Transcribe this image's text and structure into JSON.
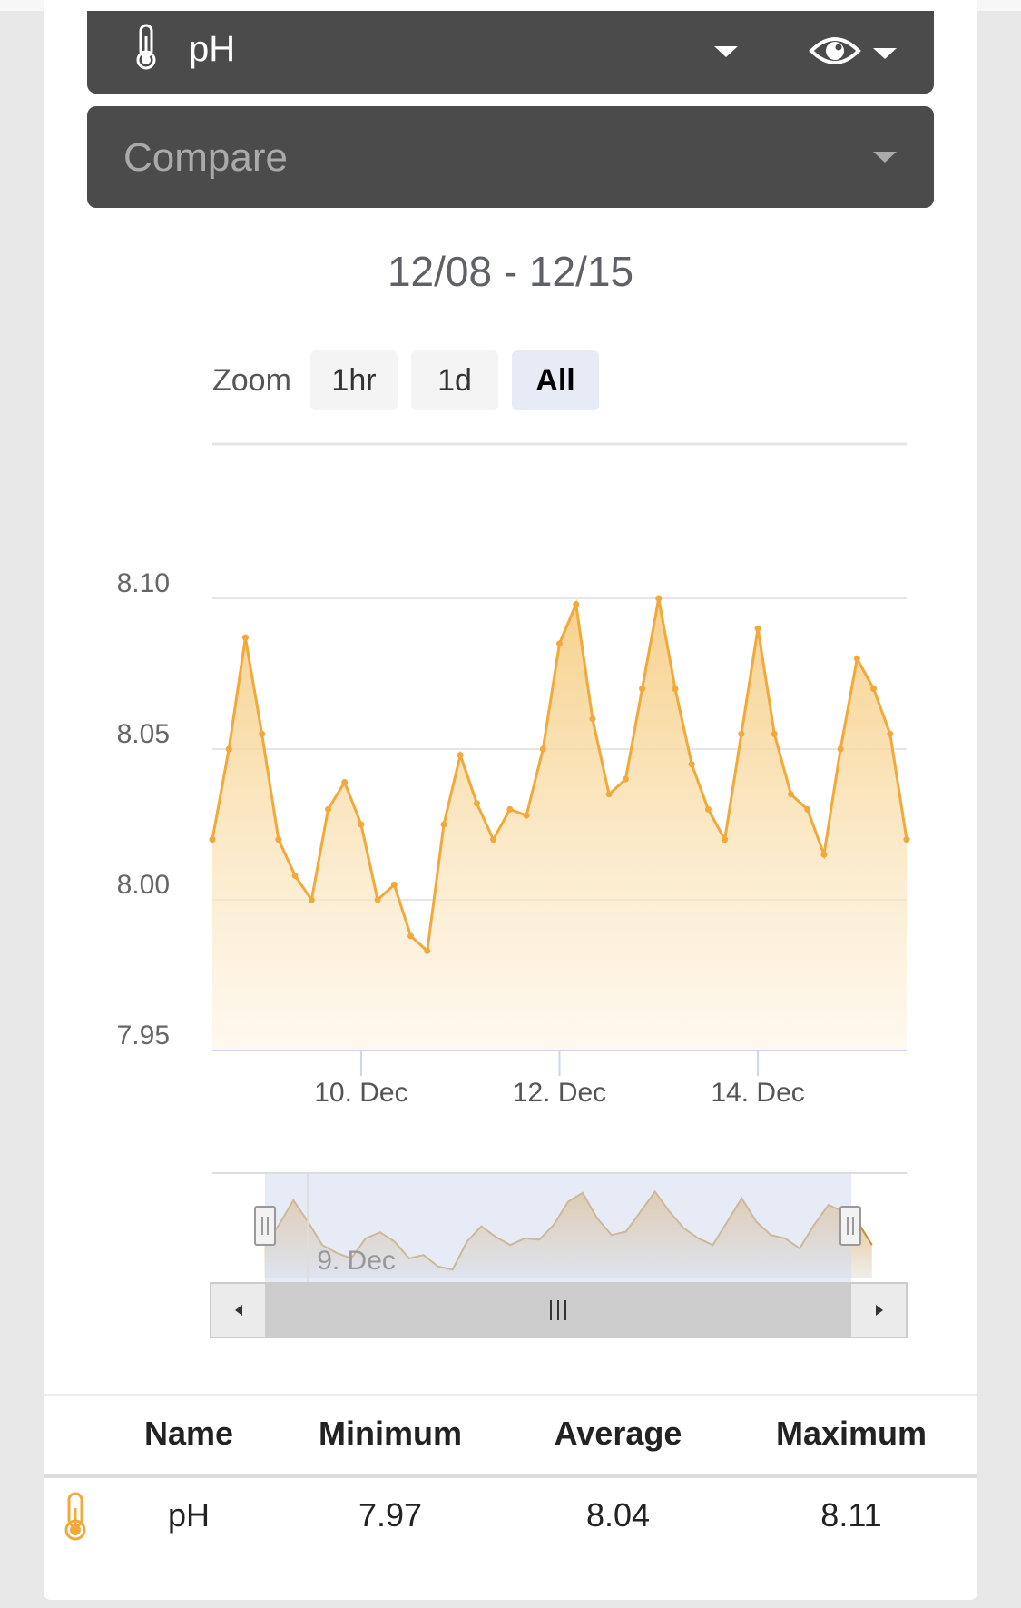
{
  "sensor": {
    "label": "pH",
    "icon": "thermometer-icon",
    "visibility_icon": "eye-icon"
  },
  "compare": {
    "placeholder": "Compare"
  },
  "date_range": "12/08 - 12/15",
  "zoom": {
    "label": "Zoom",
    "options": [
      "1hr",
      "1d",
      "All"
    ],
    "selected": "All"
  },
  "colors": {
    "series": "#f0a93a",
    "dropdown_bg": "#4a4b4a",
    "selected_zoom": "#e6ebf5",
    "navigator_mask": "#d4daee"
  },
  "chart_data": {
    "type": "area",
    "title": "",
    "xlabel": "",
    "ylabel": "",
    "ylim": [
      7.95,
      8.1
    ],
    "y_ticks": [
      "8.10",
      "8.05",
      "8.00",
      "7.95"
    ],
    "x_ticks": [
      "10. Dec",
      "12. Dec",
      "14. Dec"
    ],
    "navigator_ticks": [
      "9. Dec"
    ],
    "grid": true,
    "legend": "none",
    "series": [
      {
        "name": "pH",
        "x": [
          "2019-12-08T12:00",
          "2019-12-08T16:00",
          "2019-12-08T20:00",
          "2019-12-09T00:00",
          "2019-12-09T04:00",
          "2019-12-09T08:00",
          "2019-12-09T12:00",
          "2019-12-09T16:00",
          "2019-12-09T20:00",
          "2019-12-10T00:00",
          "2019-12-10T04:00",
          "2019-12-10T08:00",
          "2019-12-10T12:00",
          "2019-12-10T16:00",
          "2019-12-10T20:00",
          "2019-12-11T00:00",
          "2019-12-11T04:00",
          "2019-12-11T08:00",
          "2019-12-11T12:00",
          "2019-12-11T16:00",
          "2019-12-11T20:00",
          "2019-12-12T00:00",
          "2019-12-12T04:00",
          "2019-12-12T08:00",
          "2019-12-12T12:00",
          "2019-12-12T16:00",
          "2019-12-12T20:00",
          "2019-12-13T00:00",
          "2019-12-13T04:00",
          "2019-12-13T08:00",
          "2019-12-13T12:00",
          "2019-12-13T16:00",
          "2019-12-13T20:00",
          "2019-12-14T00:00",
          "2019-12-14T04:00",
          "2019-12-14T08:00",
          "2019-12-14T12:00",
          "2019-12-14T16:00",
          "2019-12-14T20:00",
          "2019-12-15T00:00",
          "2019-12-15T04:00",
          "2019-12-15T08:00",
          "2019-12-15T12:00"
        ],
        "values": [
          8.02,
          8.05,
          8.087,
          8.055,
          8.02,
          8.008,
          8.0,
          8.03,
          8.039,
          8.025,
          8.0,
          8.005,
          7.988,
          7.983,
          8.025,
          8.048,
          8.032,
          8.02,
          8.03,
          8.028,
          8.05,
          8.085,
          8.098,
          8.06,
          8.035,
          8.04,
          8.07,
          8.1,
          8.07,
          8.045,
          8.03,
          8.02,
          8.055,
          8.09,
          8.055,
          8.035,
          8.03,
          8.015,
          8.05,
          8.08,
          8.07,
          8.055,
          8.02
        ]
      }
    ]
  },
  "stats": {
    "headers": [
      "Name",
      "Minimum",
      "Average",
      "Maximum"
    ],
    "row": {
      "name": "pH",
      "minimum": "7.97",
      "average": "8.04",
      "maximum": "8.11"
    }
  }
}
